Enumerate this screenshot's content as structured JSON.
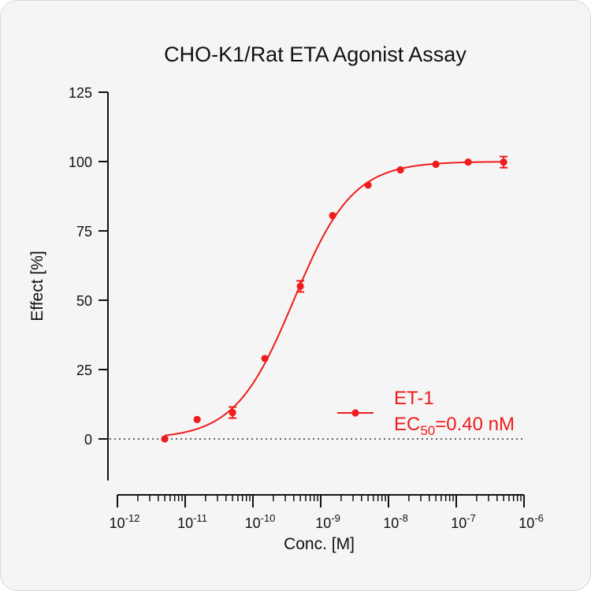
{
  "chart_data": {
    "type": "scatter",
    "title": "CHO-K1/Rat ETA Agonist Assay",
    "xlabel": "Conc. [M]",
    "ylabel": "Effect  [%]",
    "x_scale": "log",
    "xlim": [
      1e-12,
      1e-06
    ],
    "ylim": [
      -15,
      125
    ],
    "x_tick_labels": [
      {
        "base": "10",
        "exp": "-12"
      },
      {
        "base": "10",
        "exp": "-11"
      },
      {
        "base": "10",
        "exp": "-10"
      },
      {
        "base": "10",
        "exp": "-9"
      },
      {
        "base": "10",
        "exp": "-8"
      },
      {
        "base": "10",
        "exp": "-7"
      },
      {
        "base": "10",
        "exp": "-6"
      }
    ],
    "y_ticks": [
      0,
      25,
      50,
      75,
      100,
      125
    ],
    "reference_line": {
      "y": 0,
      "style": "dotted"
    },
    "legend_position": "right",
    "color": "#ee1c1c",
    "series": [
      {
        "name": "ET-1",
        "annotation": {
          "prefix": "EC",
          "subscript": "50",
          "suffix": "=0.40 nM"
        },
        "fit": {
          "model": "4PL",
          "bottom": 0,
          "top": 100,
          "ec50": 4e-10,
          "hill": 1.0
        },
        "x": [
          5e-12,
          1.5e-11,
          5e-11,
          1.5e-10,
          5e-10,
          1.5e-09,
          5e-09,
          1.5e-08,
          5e-08,
          1.5e-07,
          5e-07
        ],
        "y": [
          0,
          7,
          9.5,
          29,
          55,
          80.5,
          91.5,
          97,
          99,
          99.8,
          99.8
        ],
        "error": [
          0,
          0,
          2,
          0,
          2,
          0,
          0,
          0,
          0,
          0,
          2
        ]
      }
    ]
  }
}
